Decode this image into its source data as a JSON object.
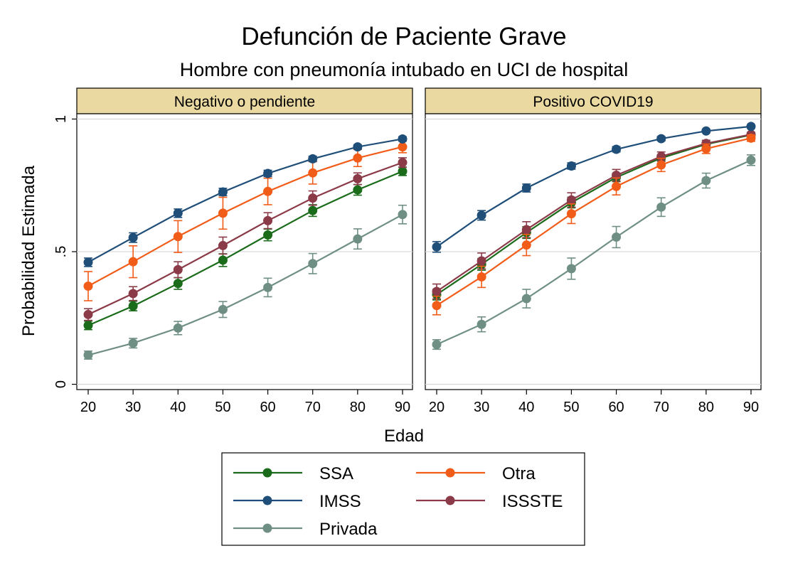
{
  "chart_data": {
    "type": "line",
    "title": "Defunción de Paciente Grave",
    "subtitle": "Hombre con pneumonía intubado en UCI de hospital",
    "xlabel": "Edad",
    "ylabel": "Probabilidad Estimada",
    "x": [
      20,
      30,
      40,
      50,
      60,
      70,
      80,
      90
    ],
    "xticks": [
      "20",
      "30",
      "40",
      "50",
      "60",
      "70",
      "80",
      "90"
    ],
    "yticks": [
      {
        "value": 0,
        "label": "0"
      },
      {
        "value": 0.5,
        "label": ".5"
      },
      {
        "value": 1,
        "label": "1"
      }
    ],
    "ylim": [
      -0.02,
      1.02
    ],
    "grid": true,
    "legend_placement": "bottom",
    "series_meta": [
      {
        "key": "ssa",
        "name": "SSA",
        "color": "#1a6b1a"
      },
      {
        "key": "imss",
        "name": "IMSS",
        "color": "#1f4e79"
      },
      {
        "key": "privada",
        "name": "Privada",
        "color": "#6f8f84"
      },
      {
        "key": "otra",
        "name": "Otra",
        "color": "#f25c19"
      },
      {
        "key": "issste",
        "name": "ISSSTE",
        "color": "#8b3a48"
      }
    ],
    "panels": [
      {
        "title": "Negativo o pendiente",
        "series": {
          "ssa": {
            "values": [
              0.222,
              0.295,
              0.38,
              0.468,
              0.563,
              0.655,
              0.733,
              0.803
            ],
            "err": [
              0.016,
              0.018,
              0.022,
              0.024,
              0.022,
              0.022,
              0.02,
              0.016
            ]
          },
          "imss": {
            "values": [
              0.46,
              0.553,
              0.645,
              0.725,
              0.795,
              0.85,
              0.895,
              0.925
            ],
            "err": [
              0.016,
              0.018,
              0.016,
              0.014,
              0.012,
              0.01,
              0.008,
              0.008
            ]
          },
          "privada": {
            "values": [
              0.11,
              0.155,
              0.212,
              0.282,
              0.365,
              0.455,
              0.548,
              0.64
            ],
            "err": [
              0.015,
              0.018,
              0.025,
              0.03,
              0.035,
              0.038,
              0.038,
              0.035
            ]
          },
          "otra": {
            "values": [
              0.37,
              0.462,
              0.557,
              0.645,
              0.727,
              0.797,
              0.853,
              0.895
            ],
            "err": [
              0.055,
              0.06,
              0.06,
              0.06,
              0.05,
              0.042,
              0.032,
              0.022
            ]
          },
          "issste": {
            "values": [
              0.263,
              0.342,
              0.432,
              0.523,
              0.617,
              0.702,
              0.775,
              0.836
            ],
            "err": [
              0.022,
              0.026,
              0.03,
              0.032,
              0.03,
              0.027,
              0.022,
              0.018
            ]
          }
        }
      },
      {
        "title": "Positivo COVID19",
        "series": {
          "ssa": {
            "values": [
              0.338,
              0.452,
              0.572,
              0.685,
              0.78,
              0.853,
              0.905,
              0.94
            ],
            "err": [
              0.02,
              0.022,
              0.022,
              0.02,
              0.016,
              0.012,
              0.009,
              0.006
            ]
          },
          "imss": {
            "values": [
              0.518,
              0.637,
              0.74,
              0.823,
              0.886,
              0.926,
              0.955,
              0.972
            ],
            "err": [
              0.02,
              0.018,
              0.015,
              0.012,
              0.01,
              0.008,
              0.006,
              0.004
            ]
          },
          "privada": {
            "values": [
              0.15,
              0.226,
              0.323,
              0.436,
              0.555,
              0.668,
              0.768,
              0.845
            ],
            "err": [
              0.018,
              0.028,
              0.035,
              0.04,
              0.04,
              0.035,
              0.028,
              0.02
            ]
          },
          "otra": {
            "values": [
              0.297,
              0.405,
              0.525,
              0.643,
              0.746,
              0.827,
              0.888,
              0.928
            ],
            "err": [
              0.035,
              0.04,
              0.04,
              0.037,
              0.032,
              0.025,
              0.018,
              0.012
            ]
          },
          "issste": {
            "values": [
              0.35,
              0.465,
              0.583,
              0.695,
              0.788,
              0.859,
              0.908,
              0.942
            ],
            "err": [
              0.028,
              0.03,
              0.03,
              0.027,
              0.022,
              0.017,
              0.012,
              0.008
            ]
          }
        }
      }
    ]
  }
}
